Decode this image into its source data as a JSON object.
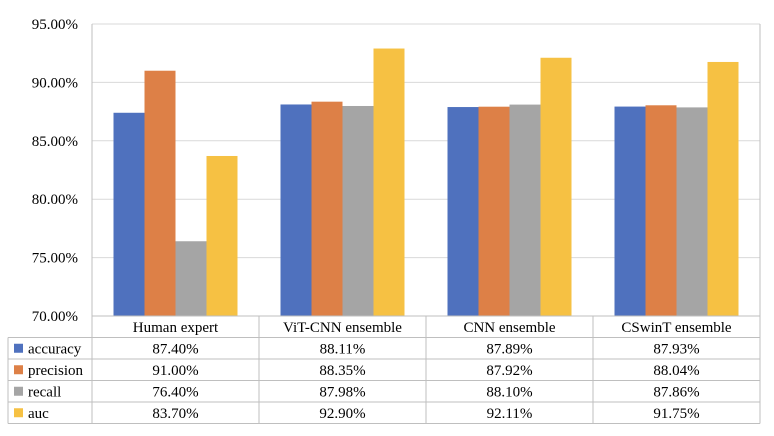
{
  "chart_data": {
    "type": "bar",
    "title": "",
    "xlabel": "",
    "ylabel": "",
    "categories": [
      "Human expert",
      "ViT-CNN ensemble",
      "CNN ensemble",
      "CSwinT ensemble"
    ],
    "series": [
      {
        "name": "accuracy",
        "color": "#4f71be",
        "values": [
          87.4,
          88.11,
          87.89,
          87.93
        ],
        "labels": [
          "87.40%",
          "88.11%",
          "87.89%",
          "87.93%"
        ]
      },
      {
        "name": "precision",
        "color": "#dd8047",
        "values": [
          91.0,
          88.35,
          87.92,
          88.04
        ],
        "labels": [
          "91.00%",
          "88.35%",
          "87.92%",
          "88.04%"
        ]
      },
      {
        "name": "recall",
        "color": "#a5a5a5",
        "values": [
          76.4,
          87.98,
          88.1,
          87.86
        ],
        "labels": [
          "76.40%",
          "87.98%",
          "88.10%",
          "87.86%"
        ]
      },
      {
        "name": "auc",
        "color": "#f6c143",
        "values": [
          83.7,
          92.9,
          92.11,
          91.75
        ],
        "labels": [
          "83.70%",
          "92.90%",
          "92.11%",
          "91.75%"
        ]
      }
    ],
    "ylim": [
      70,
      95
    ],
    "yticks": [
      "70.00%",
      "75.00%",
      "80.00%",
      "85.00%",
      "90.00%",
      "95.00%"
    ],
    "grid": true,
    "legend": "data-table"
  }
}
